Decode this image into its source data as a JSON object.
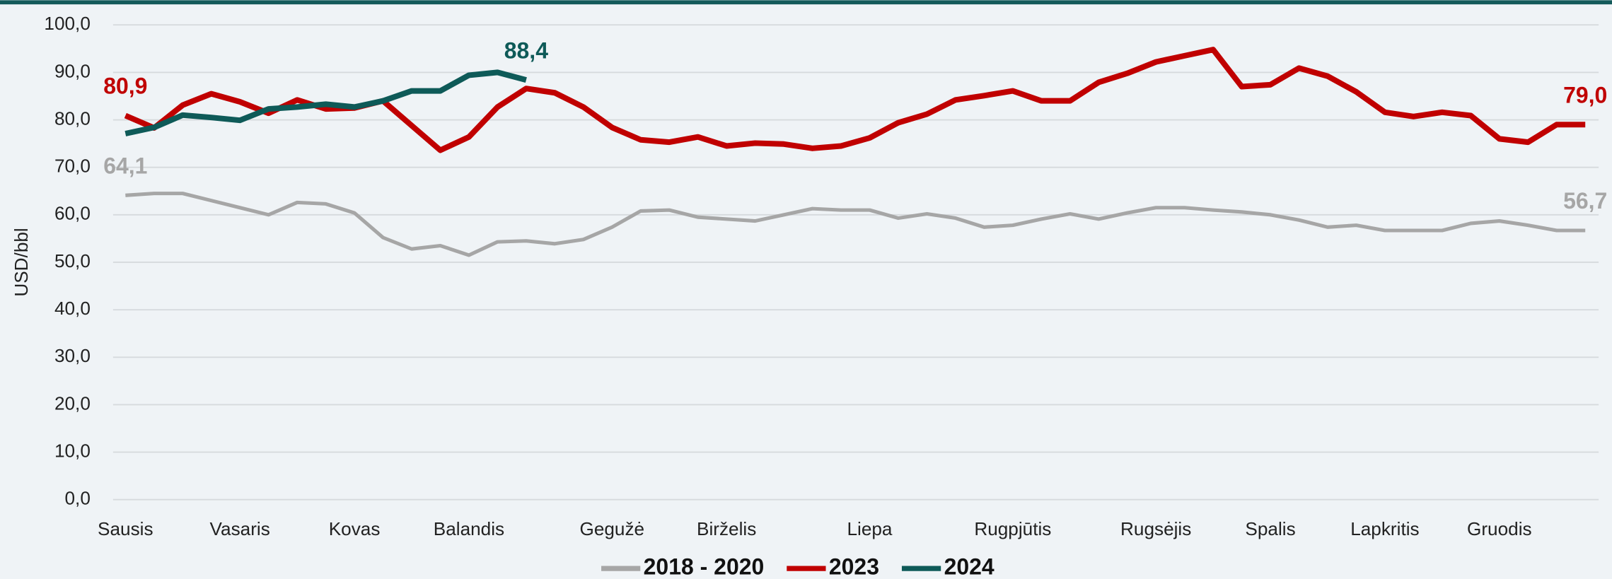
{
  "chart_data": {
    "type": "line",
    "y_label": "USD/bbl",
    "categories": [
      "Sausis",
      null,
      null,
      null,
      "Vasaris",
      null,
      null,
      null,
      "Kovas",
      null,
      null,
      null,
      "Balandis",
      null,
      null,
      null,
      null,
      "Gegužė",
      null,
      null,
      null,
      "Birželis",
      null,
      null,
      null,
      null,
      "Liepa",
      null,
      null,
      null,
      null,
      "Rugpjūtis",
      null,
      null,
      null,
      null,
      "Rugsėjis",
      null,
      null,
      null,
      "Spalis",
      null,
      null,
      null,
      "Lapkritis",
      null,
      null,
      null,
      "Gruodis",
      null,
      null,
      null
    ],
    "series": [
      {
        "name": "2018 - 2020",
        "color": "#a6a6a6",
        "values": [
          64.1,
          64.5,
          64.5,
          63.0,
          61.5,
          60.0,
          62.6,
          62.3,
          60.4,
          55.2,
          52.8,
          53.5,
          51.5,
          54.3,
          54.5,
          53.9,
          54.8,
          57.4,
          60.8,
          61.0,
          59.5,
          59.1,
          58.7,
          60.0,
          61.3,
          61.0,
          61.0,
          59.3,
          60.2,
          59.3,
          57.4,
          57.8,
          59.1,
          60.2,
          59.1,
          60.4,
          61.5,
          61.5,
          61.0,
          60.6,
          60.0,
          58.9,
          57.4,
          57.8,
          56.7,
          56.7,
          56.7,
          58.2,
          58.7,
          57.8,
          56.7,
          56.7
        ],
        "value_labels": [
          "64,1",
          null,
          null,
          null,
          null,
          null,
          null,
          null,
          null,
          null,
          null,
          null,
          null,
          null,
          null,
          null,
          null,
          null,
          null,
          null,
          null,
          null,
          null,
          null,
          null,
          null,
          null,
          null,
          null,
          null,
          null,
          null,
          null,
          null,
          null,
          null,
          null,
          null,
          null,
          null,
          null,
          null,
          null,
          null,
          null,
          null,
          null,
          null,
          null,
          null,
          null,
          "56,7"
        ]
      },
      {
        "name": "2023",
        "color": "#c00000",
        "values": [
          80.9,
          78.3,
          83.1,
          85.5,
          83.8,
          81.4,
          84.2,
          82.3,
          82.5,
          84.0,
          78.8,
          73.6,
          76.4,
          82.7,
          86.6,
          85.7,
          82.7,
          78.4,
          75.8,
          75.3,
          76.4,
          74.5,
          75.1,
          74.9,
          74.0,
          74.5,
          76.2,
          79.4,
          81.2,
          84.2,
          85.1,
          86.1,
          84.0,
          84.0,
          87.9,
          89.8,
          92.2,
          93.5,
          94.8,
          87.0,
          87.4,
          90.9,
          89.2,
          85.9,
          81.6,
          80.7,
          81.6,
          80.9,
          76.0,
          75.3,
          79.0,
          79.0
        ],
        "value_labels": [
          "80,9",
          null,
          null,
          null,
          null,
          null,
          null,
          null,
          null,
          null,
          null,
          null,
          null,
          null,
          null,
          null,
          null,
          null,
          null,
          null,
          null,
          null,
          null,
          null,
          null,
          null,
          null,
          null,
          null,
          null,
          null,
          null,
          null,
          null,
          null,
          null,
          null,
          null,
          null,
          null,
          null,
          null,
          null,
          null,
          null,
          null,
          null,
          null,
          null,
          null,
          null,
          "79,0"
        ]
      },
      {
        "name": "2024",
        "color": "#0e5a58",
        "values": [
          77.1,
          78.4,
          81.0,
          80.5,
          79.9,
          82.3,
          82.7,
          83.3,
          82.7,
          84.0,
          86.1,
          86.1,
          89.4,
          90.0,
          88.4,
          null,
          null,
          null,
          null,
          null,
          null,
          null,
          null,
          null,
          null,
          null,
          null,
          null,
          null,
          null,
          null,
          null,
          null,
          null,
          null,
          null,
          null,
          null,
          null,
          null,
          null,
          null,
          null,
          null,
          null,
          null,
          null,
          null,
          null,
          null,
          null,
          null
        ],
        "value_labels": [
          null,
          null,
          null,
          null,
          null,
          null,
          null,
          null,
          null,
          null,
          null,
          null,
          null,
          null,
          "88,4",
          null,
          null,
          null,
          null,
          null,
          null,
          null,
          null,
          null,
          null,
          null,
          null,
          null,
          null,
          null,
          null,
          null,
          null,
          null,
          null,
          null,
          null,
          null,
          null,
          null,
          null,
          null,
          null,
          null,
          null,
          null,
          null,
          null,
          null,
          null,
          null,
          null
        ]
      }
    ],
    "ylim": [
      0,
      100
    ],
    "yticks": [
      {
        "value": 0,
        "label": "0,0"
      },
      {
        "value": 10,
        "label": "10,0"
      },
      {
        "value": 20,
        "label": "20,0"
      },
      {
        "value": 30,
        "label": "30,0"
      },
      {
        "value": 40,
        "label": "40,0"
      },
      {
        "value": 50,
        "label": "50,0"
      },
      {
        "value": 60,
        "label": "60,0"
      },
      {
        "value": 70,
        "label": "70,0"
      },
      {
        "value": 80,
        "label": "80,0"
      },
      {
        "value": 90,
        "label": "90,0"
      },
      {
        "value": 100,
        "label": "100,0"
      }
    ],
    "grid": true,
    "legend": "bottom"
  }
}
